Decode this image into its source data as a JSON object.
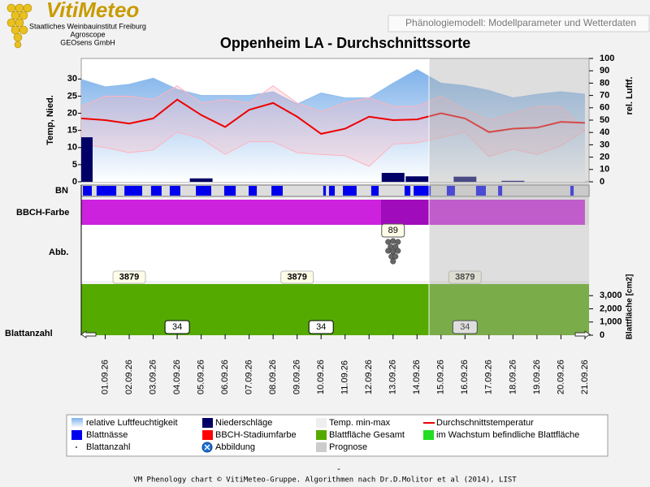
{
  "header": {
    "logo": "VitiMeteo",
    "institution": [
      "Staatliches Weinbauinstitut Freiburg",
      "Agroscope",
      "GEOsens GmbH"
    ],
    "tab": "Phänologiemodell: Modellparameter und Wetterdaten"
  },
  "chart_data": {
    "type": "phenology",
    "title": "Oppenheim LA - Durchschnittssorte",
    "categories": [
      null,
      "01.09.26",
      "02.09.26",
      "03.09.26",
      "04.09.26",
      "05.09.26",
      "06.09.26",
      "07.09.26",
      "08.09.26",
      "09.09.26",
      "10.09.26",
      "11.09.26",
      "12.09.26",
      "13.09.26",
      "14.09.26",
      "15.09.26",
      "16.09.26",
      "17.09.26",
      "18.09.26",
      "19.09.26",
      "20.09.26",
      "21.09.26"
    ],
    "forecast_start": 14.5,
    "weather": {
      "ylabel": "Temp, Nied.",
      "ylim": [
        0,
        36
      ],
      "yticks": [
        0,
        5,
        10,
        15,
        20,
        25,
        30
      ],
      "y2label": "rel. Luftf.",
      "y2lim": [
        0,
        100
      ],
      "y2ticks": [
        0,
        10,
        20,
        30,
        40,
        50,
        60,
        70,
        80,
        90,
        100
      ],
      "humidity": {
        "name": "relative Luftfeuchtigkeit",
        "color": "#8fbdec",
        "axis": "y2",
        "values": [
          83,
          77,
          79,
          84,
          75,
          70,
          70,
          70,
          73,
          63,
          72,
          68,
          68,
          80,
          91,
          80,
          78,
          74,
          68,
          71,
          73,
          71
        ]
      },
      "precipitation": {
        "name": "Niederschläge",
        "color": "#000066",
        "values": [
          13,
          0,
          0,
          0,
          0,
          1,
          0,
          0,
          0,
          0,
          0,
          0,
          0,
          2.6,
          1.6,
          0,
          1.5,
          0,
          0.3,
          0,
          0,
          0
        ]
      },
      "temp_range": {
        "name": "Temp. min-max",
        "color": "#ffb3bd",
        "legend_color": "#eeeeee",
        "high": [
          22,
          25,
          25,
          24,
          28,
          23,
          24,
          23,
          28,
          23,
          20.5,
          23,
          24.5,
          22,
          22,
          25,
          21,
          18,
          20,
          22,
          22,
          15
        ],
        "low": [
          11,
          10,
          8.5,
          9.3,
          14.5,
          12.6,
          8,
          11.7,
          11.7,
          8.5,
          8,
          7.6,
          4.5,
          11,
          11.4,
          12.9,
          14.5,
          7.4,
          9.5,
          8,
          10.5,
          15
        ]
      },
      "temp_mean": {
        "name": "Durchschnittstemperatur",
        "color": "#ee0000",
        "values": [
          18.5,
          18,
          17,
          18.5,
          24,
          19.5,
          16,
          21,
          23,
          19,
          14,
          15.5,
          19,
          18,
          18.2,
          20,
          18.5,
          14.5,
          15.5,
          15.8,
          17.5,
          17.2
        ]
      }
    },
    "leaf_wetness": {
      "label": "BN",
      "name": "Blattnässe",
      "color": "#0000ee",
      "spans": [
        [
          0.07,
          0.44
        ],
        [
          0.64,
          1.46
        ],
        [
          1.8,
          2.54
        ],
        [
          2.91,
          3.35
        ],
        [
          3.69,
          4.13
        ],
        [
          4.78,
          5.42
        ],
        [
          5.96,
          6.44
        ],
        [
          6.98,
          7.32
        ],
        [
          7.93,
          8.4
        ],
        [
          10.09,
          10.2
        ],
        [
          10.33,
          10.57
        ],
        [
          10.91,
          11.48
        ],
        [
          12.09,
          12.4
        ],
        [
          13.48,
          13.72
        ],
        [
          13.86,
          14.57
        ],
        [
          15.24,
          15.58
        ],
        [
          16.46,
          16.87
        ],
        [
          17.38,
          17.55
        ],
        [
          20.39,
          20.53
        ]
      ]
    },
    "bbch": {
      "label": "BBCH-Farbe",
      "name": "BBCH-Stadiumfarbe",
      "legend_color": "#ff0000",
      "segments": [
        {
          "from": 0,
          "to": 12.5,
          "color": "#cc22dd"
        },
        {
          "from": 12.5,
          "to": 14.5,
          "color": "#a00cbb"
        },
        {
          "from": 14.5,
          "to": 21,
          "color": "#cc22dd"
        }
      ],
      "stage": {
        "x": 13,
        "value": 89
      }
    },
    "picture": {
      "label": "Abb.",
      "name": "Abbildung",
      "x": 13
    },
    "leaf_area": {
      "name": "Blattfläche Gesamt",
      "color": "#55aa00",
      "ylabel": "Blattfläche [cm2]",
      "ylim": [
        0,
        4000
      ],
      "yticks": [
        0,
        {
          "value": 1000,
          "label": "1,000"
        },
        {
          "value": 2000,
          "label": "2,000"
        },
        {
          "value": 3000,
          "label": "3,000"
        }
      ],
      "values": [
        3879,
        3879,
        3879,
        3879,
        3879,
        3879,
        3879,
        3879,
        3879,
        3879,
        3879,
        3879,
        3879,
        3879,
        3879,
        3879,
        3879,
        3879,
        3879,
        3879,
        3879,
        3879
      ]
    },
    "growing_leaf_area": {
      "name": "im Wachstum befindliche Blattfläche",
      "color": "#22dd22"
    },
    "leaf_count": {
      "label": "Blattanzahl",
      "name": "Blattanzahl",
      "values": [
        34,
        34,
        34,
        34,
        34,
        34,
        34,
        34,
        34,
        34,
        34,
        34,
        34,
        34,
        34,
        34,
        34,
        34,
        34,
        34,
        34,
        34
      ]
    },
    "forecast": {
      "name": "Prognose",
      "color": "#cccccc"
    }
  },
  "footer": {
    "mark": "-",
    "text": "VM Phenology chart © VitiMeteo-Gruppe. Algorithmen nach Dr.D.Molitor et al (2014), LIST"
  }
}
